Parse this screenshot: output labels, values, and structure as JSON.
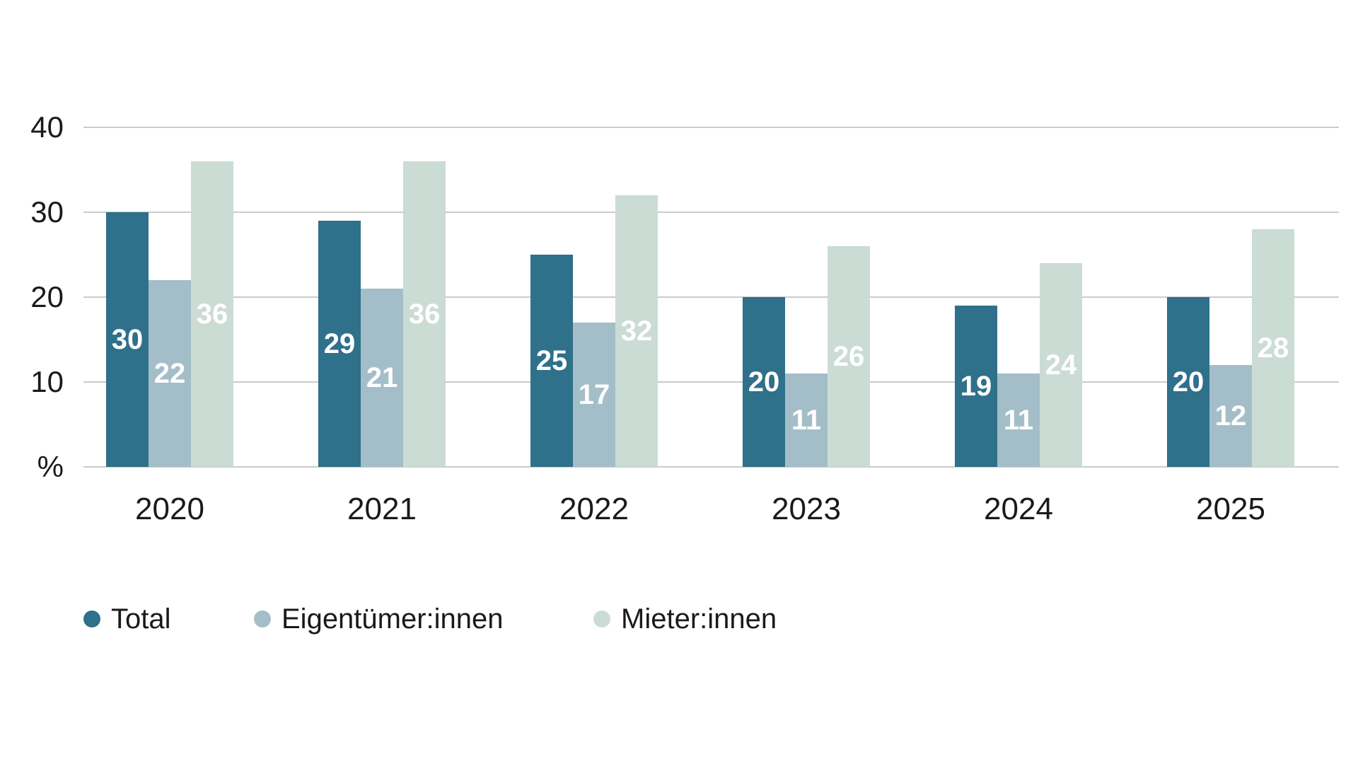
{
  "chart_data": {
    "type": "bar",
    "title": "",
    "categories": [
      "2020",
      "2021",
      "2022",
      "2023",
      "2024",
      "2025"
    ],
    "series": [
      {
        "name": "Total",
        "color": "#2F708A",
        "values": [
          30,
          29,
          25,
          20,
          19,
          20
        ]
      },
      {
        "name": "Eigentümer:innen",
        "color": "#A3BEC8",
        "values": [
          22,
          21,
          17,
          11,
          11,
          12
        ]
      },
      {
        "name": "Mieter:innen",
        "color": "#CBDCD5",
        "values": [
          36,
          36,
          32,
          26,
          24,
          28
        ]
      }
    ],
    "xlabel": "",
    "ylabel": "%",
    "yticks": [
      10,
      20,
      30,
      40
    ],
    "ylim": [
      0,
      40
    ],
    "grid": true,
    "gridline_color": "#cbcbcb",
    "text_color": "#1a1a1a",
    "value_label_color": "#ffffff",
    "legend_position": "bottom"
  }
}
